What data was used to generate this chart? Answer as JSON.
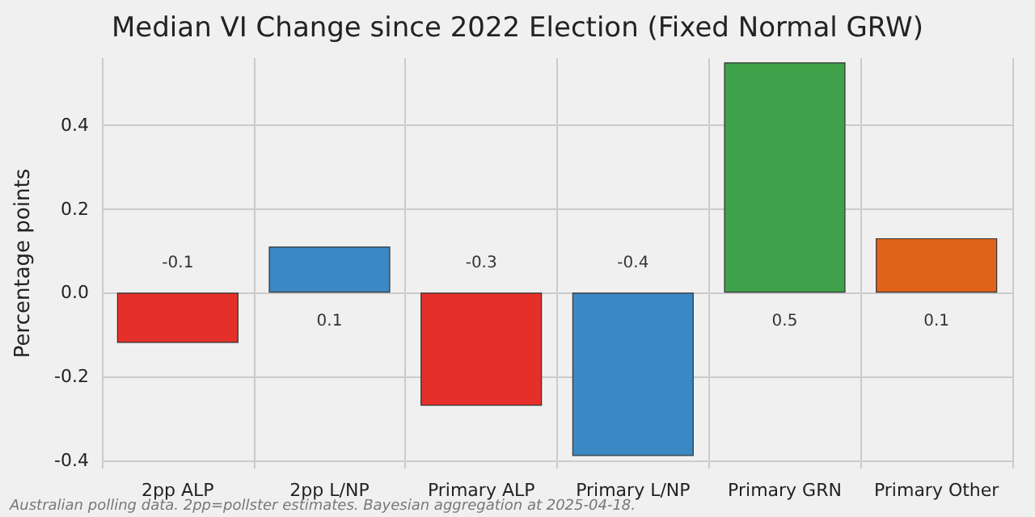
{
  "chart_data": {
    "type": "bar",
    "title": "Median VI Change since 2022 Election (Fixed Normal GRW)",
    "ylabel": "Percentage points",
    "categories": [
      "2pp ALP",
      "2pp L/NP",
      "Primary ALP",
      "Primary L/NP",
      "Primary GRN",
      "Primary Other"
    ],
    "values": [
      -0.12,
      0.11,
      -0.27,
      -0.39,
      0.55,
      0.13
    ],
    "colors": [
      "#e5302a",
      "#3a88c4",
      "#e5302a",
      "#3a88c4",
      "#3fa14a",
      "#e0621b"
    ],
    "value_labels": [
      "-0.1",
      "0.1",
      "-0.3",
      "-0.4",
      "0.5",
      "0.1"
    ],
    "ylim": [
      -0.42,
      0.56
    ],
    "yticks": [
      -0.4,
      -0.2,
      {
        "value": 0,
        "label": "0.0"
      },
      0.2,
      0.4
    ],
    "grid": true,
    "annotations": [
      "Australian polling data. 2pp=pollster estimates. Bayesian aggregation at 2025-04-18."
    ]
  }
}
